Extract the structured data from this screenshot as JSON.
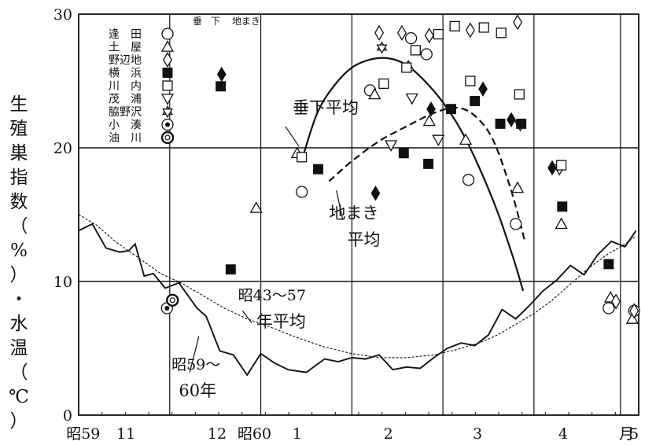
{
  "chart_data": {
    "type": "scatter",
    "ylabel_chars": [
      "生",
      "殖",
      "巣",
      "指",
      "数",
      "（",
      "%",
      "）",
      "・",
      "水",
      "温",
      "（",
      "℃",
      "）"
    ],
    "ylim": [
      0,
      30
    ],
    "xlim": [
      0,
      6.15
    ],
    "y_ticks": [
      "0",
      "10",
      "20",
      "30"
    ],
    "x_tick_labels": [
      {
        "label": "昭59",
        "x": 0.05
      },
      {
        "label": "11",
        "x": 0.52
      },
      {
        "label": "12",
        "x": 1.52
      },
      {
        "label": "昭60",
        "x": 1.93
      },
      {
        "label": "1",
        "x": 2.4
      },
      {
        "label": "2",
        "x": 3.4
      },
      {
        "label": "3",
        "x": 4.38
      },
      {
        "label": "4",
        "x": 5.32
      },
      {
        "label": "5",
        "x": 6.28
      },
      {
        "label": "月",
        "x": 6.58
      }
    ],
    "legend": {
      "headers": [
        "垂",
        "下",
        "地まき"
      ],
      "entries": [
        {
          "name": "逢　田",
          "marker": "circle"
        },
        {
          "name": "土　屋",
          "marker": "triangle"
        },
        {
          "name": "野辺地",
          "marker": "diamond"
        },
        {
          "name": "横　浜",
          "marker": "square"
        },
        {
          "name": "川　内",
          "marker": "square-open"
        },
        {
          "name": "茂　浦",
          "marker": "triangle-down"
        },
        {
          "name": "脇野沢",
          "marker": "star"
        },
        {
          "name": "小　湊",
          "marker": "circle-dot"
        },
        {
          "name": "油　川",
          "marker": "double-circle"
        }
      ]
    },
    "annotations": [
      {
        "text": "垂下平均",
        "x": 2.35,
        "y": 22.6
      },
      {
        "text": "地まき",
        "x": 2.75,
        "y": 14.7
      },
      {
        "text": "平均",
        "x": 2.95,
        "y": 12.7
      },
      {
        "text": "昭43～57",
        "x": 1.75,
        "y": 8.6
      },
      {
        "text": "年平均",
        "x": 1.95,
        "y": 6.6
      },
      {
        "text": "昭59～",
        "x": 1.02,
        "y": 3.4
      },
      {
        "text": "60年",
        "x": 1.1,
        "y": 1.4
      }
    ],
    "series": [
      {
        "name": "垂下平均",
        "style": "solid-thick",
        "points": [
          [
            2.46,
            19.3
          ],
          [
            2.62,
            22.6
          ],
          [
            2.8,
            24.6
          ],
          [
            3.0,
            26.0
          ],
          [
            3.2,
            26.6
          ],
          [
            3.4,
            26.7
          ],
          [
            3.6,
            26.2
          ],
          [
            3.8,
            25.0
          ],
          [
            4.0,
            23.4
          ],
          [
            4.2,
            21.3
          ],
          [
            4.4,
            18.5
          ],
          [
            4.6,
            15.2
          ],
          [
            4.78,
            11.6
          ],
          [
            4.88,
            9.3
          ]
        ]
      },
      {
        "name": "地まき平均",
        "style": "dashed-thick",
        "points": [
          [
            2.75,
            17.5
          ],
          [
            3.0,
            19.0
          ],
          [
            3.3,
            20.5
          ],
          [
            3.6,
            21.6
          ],
          [
            3.9,
            22.6
          ],
          [
            4.15,
            23.0
          ],
          [
            4.35,
            22.4
          ],
          [
            4.55,
            20.6
          ],
          [
            4.75,
            16.8
          ],
          [
            4.9,
            13.0
          ]
        ]
      },
      {
        "name": "昭43～57年平均",
        "style": "dashed-thin",
        "points": [
          [
            0.0,
            15.0
          ],
          [
            0.2,
            14.2
          ],
          [
            0.4,
            13.0
          ],
          [
            0.65,
            11.8
          ],
          [
            0.9,
            10.6
          ],
          [
            1.15,
            9.8
          ],
          [
            1.4,
            8.8
          ],
          [
            1.6,
            8.0
          ],
          [
            1.85,
            7.2
          ],
          [
            2.1,
            6.6
          ],
          [
            2.4,
            5.8
          ],
          [
            2.7,
            5.1
          ],
          [
            3.0,
            4.6
          ],
          [
            3.3,
            4.3
          ],
          [
            3.6,
            4.3
          ],
          [
            3.9,
            4.5
          ],
          [
            4.15,
            4.9
          ],
          [
            4.4,
            5.4
          ],
          [
            4.6,
            6.0
          ],
          [
            4.8,
            6.8
          ],
          [
            5.0,
            7.6
          ],
          [
            5.2,
            8.6
          ],
          [
            5.4,
            9.8
          ],
          [
            5.6,
            11.0
          ],
          [
            5.8,
            12.0
          ],
          [
            6.0,
            12.8
          ],
          [
            6.12,
            13.4
          ]
        ]
      },
      {
        "name": "昭59～60年",
        "style": "solid-thin",
        "points": [
          [
            0.0,
            13.8
          ],
          [
            0.15,
            14.3
          ],
          [
            0.3,
            12.5
          ],
          [
            0.45,
            12.2
          ],
          [
            0.55,
            12.3
          ],
          [
            0.62,
            12.8
          ],
          [
            0.72,
            10.4
          ],
          [
            0.82,
            10.6
          ],
          [
            0.95,
            9.5
          ],
          [
            1.1,
            9.9
          ],
          [
            1.3,
            8.0
          ],
          [
            1.4,
            7.4
          ],
          [
            1.55,
            4.8
          ],
          [
            1.7,
            4.5
          ],
          [
            1.85,
            3.0
          ],
          [
            2.0,
            4.6
          ],
          [
            2.15,
            3.9
          ],
          [
            2.3,
            3.4
          ],
          [
            2.5,
            3.2
          ],
          [
            2.7,
            4.2
          ],
          [
            2.85,
            4.0
          ],
          [
            3.0,
            4.3
          ],
          [
            3.15,
            4.2
          ],
          [
            3.3,
            4.5
          ],
          [
            3.45,
            3.4
          ],
          [
            3.6,
            3.6
          ],
          [
            3.75,
            3.5
          ],
          [
            3.9,
            4.3
          ],
          [
            4.05,
            5.0
          ],
          [
            4.2,
            5.4
          ],
          [
            4.35,
            5.2
          ],
          [
            4.5,
            6.0
          ],
          [
            4.65,
            7.9
          ],
          [
            4.8,
            7.2
          ],
          [
            4.95,
            8.2
          ],
          [
            5.1,
            9.3
          ],
          [
            5.25,
            10.1
          ],
          [
            5.4,
            11.2
          ],
          [
            5.55,
            10.5
          ],
          [
            5.7,
            12.0
          ],
          [
            5.85,
            13.0
          ],
          [
            6.0,
            12.6
          ],
          [
            6.12,
            13.8
          ]
        ]
      }
    ],
    "markers": [
      {
        "marker": "circle",
        "points": [
          [
            2.45,
            16.7
          ],
          [
            3.2,
            24.3
          ],
          [
            3.65,
            28.2
          ],
          [
            3.82,
            27.0
          ],
          [
            4.28,
            17.6
          ],
          [
            4.8,
            14.3
          ],
          [
            5.82,
            8.0
          ],
          [
            6.1,
            7.8
          ]
        ]
      },
      {
        "marker": "triangle",
        "points": [
          [
            2.4,
            19.6
          ],
          [
            1.95,
            15.5
          ],
          [
            3.25,
            24.0
          ],
          [
            3.62,
            26.1
          ],
          [
            3.85,
            22.0
          ],
          [
            4.25,
            20.6
          ],
          [
            4.82,
            17.0
          ],
          [
            5.3,
            14.3
          ],
          [
            5.84,
            8.8
          ],
          [
            6.08,
            7.2
          ]
        ]
      },
      {
        "marker": "triangle-down",
        "points": [
          [
            3.43,
            20.2
          ],
          [
            3.66,
            23.7
          ],
          [
            3.95,
            20.6
          ],
          [
            4.85,
            21.7
          ],
          [
            5.28,
            18.4
          ]
        ]
      },
      {
        "marker": "diamond",
        "points": [
          [
            3.3,
            28.6
          ],
          [
            3.55,
            28.6
          ],
          [
            3.85,
            28.4
          ],
          [
            4.3,
            28.8
          ],
          [
            4.82,
            29.4
          ],
          [
            5.9,
            8.5
          ],
          [
            6.1,
            7.8
          ]
        ]
      },
      {
        "marker": "square-open",
        "points": [
          [
            2.45,
            19.3
          ],
          [
            3.35,
            24.8
          ],
          [
            3.6,
            26.0
          ],
          [
            3.7,
            27.3
          ],
          [
            3.95,
            28.5
          ],
          [
            4.13,
            29.1
          ],
          [
            4.45,
            29.0
          ],
          [
            4.64,
            28.6
          ],
          [
            4.3,
            25.0
          ],
          [
            4.84,
            24.0
          ],
          [
            5.3,
            18.7
          ]
        ]
      },
      {
        "marker": "diamond-filled",
        "points": [
          [
            1.57,
            25.5
          ],
          [
            3.26,
            16.6
          ],
          [
            3.87,
            22.9
          ],
          [
            4.44,
            24.4
          ],
          [
            4.75,
            22.1
          ],
          [
            5.2,
            18.5
          ]
        ]
      },
      {
        "marker": "square",
        "points": [
          [
            1.56,
            24.6
          ],
          [
            1.67,
            10.9
          ],
          [
            2.63,
            18.4
          ],
          [
            3.57,
            19.6
          ],
          [
            3.84,
            18.8
          ],
          [
            4.09,
            22.9
          ],
          [
            4.35,
            23.5
          ],
          [
            4.63,
            21.8
          ],
          [
            4.86,
            21.8
          ],
          [
            5.31,
            15.6
          ],
          [
            5.82,
            11.3
          ]
        ]
      },
      {
        "marker": "star",
        "points": [
          [
            3.33,
            27.5
          ]
        ]
      },
      {
        "marker": "circle-dot",
        "points": [
          [
            0.97,
            8.0
          ]
        ]
      },
      {
        "marker": "double-circle",
        "points": [
          [
            1.03,
            8.6
          ]
        ]
      }
    ]
  }
}
